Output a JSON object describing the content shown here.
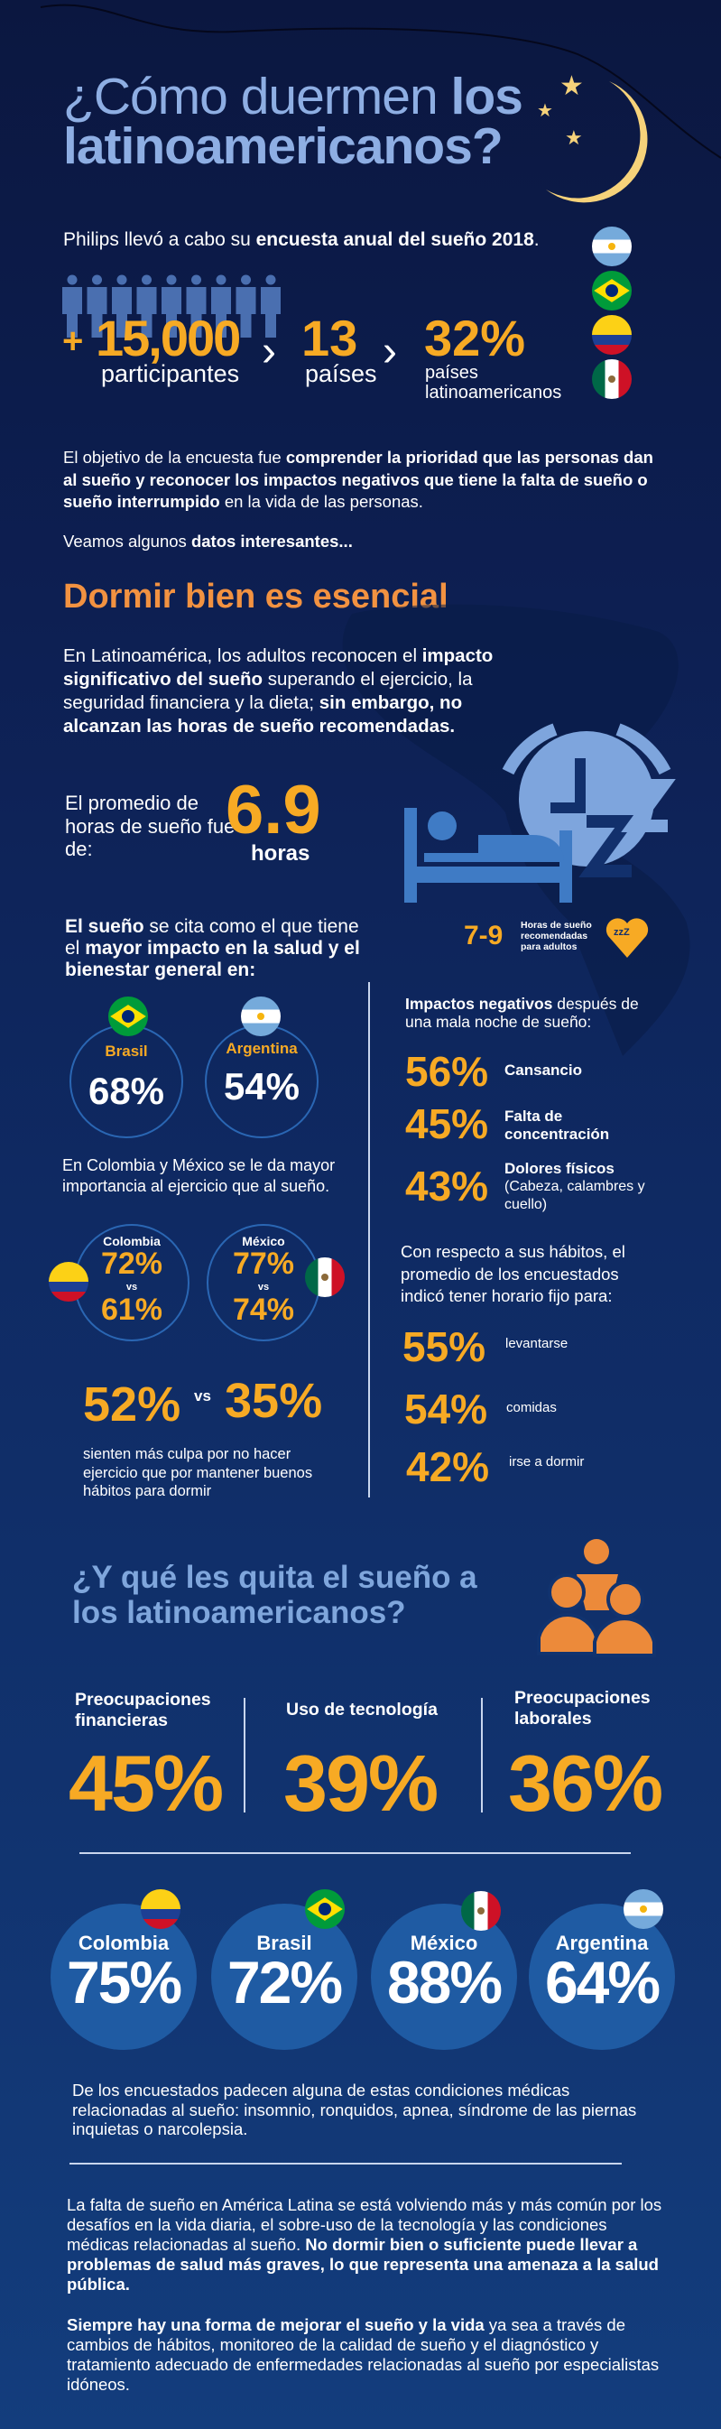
{
  "title": {
    "light": "¿Cómo duermen ",
    "bold1": "los",
    "line2": "latinoamericanos?"
  },
  "intro": {
    "segments": [
      {
        "t": "Philips llevó a cabo su "
      },
      {
        "t": "encuesta anual del sueño 2018",
        "b": true
      },
      {
        "t": "."
      }
    ]
  },
  "stats": [
    {
      "prefix": "+",
      "value": "15,000",
      "label": "participantes"
    },
    {
      "value": "13",
      "label": "países"
    },
    {
      "value": "32%",
      "label1": "países",
      "label2": "latinoamericanos"
    }
  ],
  "flags": [
    "argentina",
    "brasil",
    "colombia",
    "mexico"
  ],
  "objective": {
    "segments": [
      {
        "t": "El objetivo de la encuesta fue "
      },
      {
        "t": "comprender la prioridad que las personas dan al sueño y reconocer los impactos negativos que tiene la falta de sueño o sueño interrumpido",
        "b": true
      },
      {
        "t": " en la vida de las personas."
      }
    ]
  },
  "veamos": {
    "segments": [
      {
        "t": "Veamos algunos "
      },
      {
        "t": "datos interesantes...",
        "b": true
      }
    ]
  },
  "section1": {
    "heading": "Dormir bien es esencial",
    "para": {
      "segments": [
        {
          "t": "En Latinoamérica, los adultos reconocen el "
        },
        {
          "t": "impacto significativo del sueño",
          "b": true
        },
        {
          "t": " superando el ejercicio, la seguridad financiera y la dieta; "
        },
        {
          "t": "sin embargo, no alcanzan las horas de sueño recomendadas.",
          "b": true
        }
      ]
    },
    "average_label": "El promedio de horas de sueño fue de:",
    "average_value": "6.9",
    "average_unit": "horas",
    "recommended_range": "7-9",
    "recommended_label": "Horas de sueño recomendadas para adultos",
    "zzz": "zzZ",
    "impact": {
      "segments": [
        {
          "t": "El sueño",
          "b": true
        },
        {
          "t": " se cita como el que tiene el "
        },
        {
          "t": "mayor impacto en la salud y el bienestar general en:",
          "b": true
        }
      ]
    },
    "impact_countries": [
      {
        "name": "Brasil",
        "value": "68%"
      },
      {
        "name": "Argentina",
        "value": "54%"
      }
    ],
    "exercise_note": "En Colombia y México se le da mayor importancia al ejercicio que al sueño.",
    "exercise_countries": [
      {
        "name": "Colombia",
        "a": "72%",
        "b": "61%"
      },
      {
        "name": "México",
        "a": "77%",
        "b": "74%"
      }
    ],
    "vs": "vs",
    "guilt": {
      "a": "52%",
      "b": "35%",
      "text": "sienten más culpa por no hacer ejercicio que por mantener buenos hábitos para dormir"
    },
    "negative": {
      "segments": [
        {
          "t": "Impactos negativos",
          "b": true
        },
        {
          "t": " después de una mala noche de sueño:"
        }
      ]
    },
    "negative_items": [
      {
        "value": "56%",
        "label": "Cansancio",
        "note": ""
      },
      {
        "value": "45%",
        "label": "Falta de concentración",
        "note": ""
      },
      {
        "value": "43%",
        "label": "Dolores físicos",
        "note": "(Cabeza, calambres y cuello)"
      }
    ],
    "habits_intro": "Con respecto a sus hábitos, el promedio de los encuestados indicó tener horario fijo para:",
    "habits": [
      {
        "value": "55%",
        "label": "levantarse"
      },
      {
        "value": "54%",
        "label": "comidas"
      },
      {
        "value": "42%",
        "label": "irse a dormir"
      }
    ]
  },
  "section2": {
    "heading": "¿Y qué les quita el sueño a los latinoamericanos?",
    "causes": [
      {
        "label": "Preocupaciones financieras",
        "value": "45%"
      },
      {
        "label": "Uso de tecnología",
        "value": "39%"
      },
      {
        "label": "Preocupaciones laborales",
        "value": "36%"
      }
    ],
    "conditions": [
      {
        "name": "Colombia",
        "value": "75%",
        "flag": "col"
      },
      {
        "name": "Brasil",
        "value": "72%",
        "flag": "bra"
      },
      {
        "name": "México",
        "value": "88%",
        "flag": "mex"
      },
      {
        "name": "Argentina",
        "value": "64%",
        "flag": "arg"
      }
    ],
    "conditions_text": "De los encuestados padecen alguna de estas condiciones médicas relacionadas al sueño: insomnio, ronquidos, apnea, síndrome de las piernas inquietas o narcolepsia."
  },
  "closing": [
    {
      "segments": [
        {
          "t": "La falta de sueño en América Latina se está volviendo más y más común por los desafíos en la vida diaria, el sobre-uso de la tecnología y las condiciones médicas relacionadas al sueño. "
        },
        {
          "t": "No dormir bien o suficiente puede llevar a problemas de salud más graves, lo que representa una amenaza a la salud pública.",
          "b": true
        }
      ]
    },
    {
      "segments": [
        {
          "t": "Siempre hay una forma de mejorar el sueño y la vida",
          "b": true
        },
        {
          "t": " ya sea a través de cambios de hábitos, monitoreo de la calidad de sueño y el diagnóstico y tratamiento adecuado de enfermedades relacionadas al sueño por especialistas idóneos."
        }
      ]
    }
  ],
  "colors": {
    "accent": "#f7aa24",
    "heading_orange": "#f29241",
    "title_blue": "#8eaee3",
    "circle": "#1f5ba3"
  }
}
